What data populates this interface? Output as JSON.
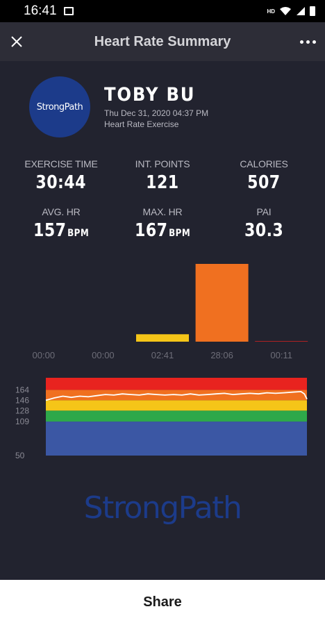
{
  "status_bar": {
    "time": "16:41",
    "hd_label": "HD"
  },
  "app_bar": {
    "title": "Heart Rate Summary",
    "close_icon": "close-icon",
    "more_icon": "more-vertical-dots-icon"
  },
  "profile": {
    "logo_text": "StrongPath",
    "name": "TOBY BU",
    "date": "Thu Dec 31, 2020 04:37 PM",
    "exercise_type": "Heart Rate Exercise"
  },
  "stats": {
    "exercise_time": {
      "label": "EXERCISE TIME",
      "value": "30:44"
    },
    "int_points": {
      "label": "INT. POINTS",
      "value": "121"
    },
    "calories": {
      "label": "CALORIES",
      "value": "507"
    },
    "avg_hr": {
      "label": "AVG. HR",
      "value": "157",
      "unit": "BPM"
    },
    "max_hr": {
      "label": "MAX. HR",
      "value": "167",
      "unit": "BPM"
    },
    "pai": {
      "label": "PAI",
      "value": "30.3"
    }
  },
  "chart_data": [
    {
      "type": "bar",
      "categories": [
        "00:00",
        "00:00",
        "02:41",
        "28:06",
        "00:11"
      ],
      "values": [
        0,
        0,
        2.68,
        28.1,
        0.18
      ],
      "colors": [
        "#1c3b8a",
        "#2ea84a",
        "#f5c518",
        "#f07020",
        "#e8231f"
      ],
      "ylim": [
        0,
        28.1
      ]
    },
    {
      "type": "line",
      "yticks": [
        164,
        146,
        128,
        109,
        50
      ],
      "ylim": [
        50,
        185
      ],
      "zones": [
        {
          "from": 50,
          "to": 109,
          "color": "#3b57a4"
        },
        {
          "from": 109,
          "to": 128,
          "color": "#2ea84a"
        },
        {
          "from": 128,
          "to": 146,
          "color": "#f5c518"
        },
        {
          "from": 146,
          "to": 164,
          "color": "#f07020"
        },
        {
          "from": 164,
          "to": 185,
          "color": "#e8231f"
        }
      ],
      "x": [
        0,
        0.5,
        1,
        2,
        3,
        4,
        5,
        6,
        7,
        8,
        9,
        10,
        11,
        12,
        13,
        14,
        15,
        16,
        17,
        18,
        19,
        20,
        21,
        22,
        23,
        24,
        25,
        26,
        27,
        28,
        29,
        30,
        30.4,
        30.7
      ],
      "y": [
        146,
        148,
        150,
        153,
        151,
        153,
        152,
        154,
        156,
        155,
        157,
        156,
        155,
        157,
        156,
        155,
        156,
        155,
        157,
        155,
        156,
        157,
        158,
        156,
        157,
        158,
        157,
        159,
        158,
        159,
        160,
        161,
        157,
        148
      ],
      "line_color": "#ffffff"
    }
  ],
  "brand": {
    "logo_text": "StrongPath"
  },
  "footer": {
    "share_label": "Share"
  }
}
